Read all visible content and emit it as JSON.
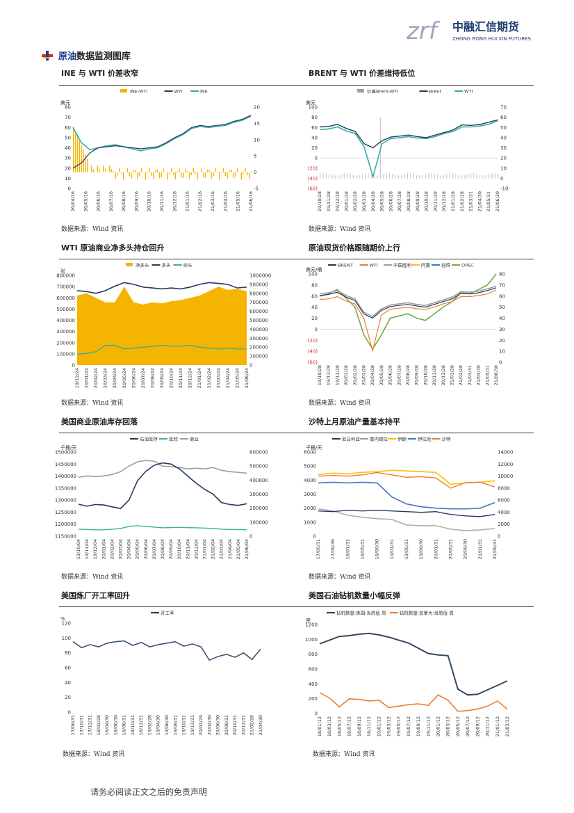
{
  "header": {
    "logo_mark": "zrf",
    "logo_cn": "中融汇信期货",
    "logo_en": "ZHONG RONG HUI XIN FUTURES"
  },
  "section": {
    "title_highlight": "原油",
    "title_rest": "数据监测图库"
  },
  "source_text": "数据来源：Wind 资讯",
  "footer": "请务必阅读正文之后的免责声明",
  "colors": {
    "navy": "#243a5e",
    "teal": "#3aaea0",
    "orange": "#f5b400",
    "grey": "#9e9e9e",
    "orange2": "#ed7d31",
    "blue": "#4472c4",
    "green": "#70ad47",
    "gold": "#ffc000"
  },
  "charts": [
    {
      "title": "INE 与 WTI 价差收窄",
      "chart_data": {
        "type": "line",
        "unit_left": "美元",
        "legend": [
          "INE-WTI",
          "WTI",
          "INE"
        ],
        "y_left_ticks": [
          "80",
          "70",
          "60",
          "50",
          "40",
          "30",
          "20",
          "10",
          "0"
        ],
        "y_right_ticks": [
          "20",
          "15",
          "10",
          "5",
          "0",
          "-5"
        ],
        "x_ticks": [
          "20/04/16",
          "20/05/16",
          "20/06/16",
          "20/07/16",
          "20/08/16",
          "20/09/16",
          "20/10/16",
          "20/11/16",
          "20/12/16",
          "21/01/16",
          "21/02/16",
          "21/03/16",
          "21/04/16",
          "21/05/16",
          "21/06/16"
        ],
        "wti": [
          20,
          25,
          35,
          40,
          41,
          42,
          41,
          40,
          39,
          40,
          41,
          45,
          50,
          54,
          60,
          62,
          61,
          62,
          63,
          66,
          68,
          72
        ],
        "ine": [
          60,
          45,
          38,
          40,
          42,
          43,
          41,
          39,
          37,
          39,
          40,
          44,
          49,
          53,
          59,
          61,
          60,
          61,
          62,
          65,
          67,
          71
        ]
      }
    },
    {
      "title": "BRENT 与 WTI 价差维持低位",
      "chart_data": {
        "type": "line",
        "unit_left": "美元",
        "legend": [
          "价差Brent-WTI",
          "Brent",
          "WTI"
        ],
        "y_left_ticks": [
          "100",
          "80",
          "60",
          "40",
          "20",
          "0",
          "(20)",
          "(40)",
          "(60)"
        ],
        "y_right_ticks": [
          "70",
          "60",
          "50",
          "40",
          "30",
          "20",
          "10",
          "0",
          "-10"
        ],
        "x_ticks": [
          "19/10/28",
          "19/11/28",
          "19/12/28",
          "20/01/28",
          "20/02/28",
          "20/03/28",
          "20/04/28",
          "20/05/28",
          "20/06/28",
          "20/07/28",
          "20/08/28",
          "20/09/28",
          "20/10/28",
          "20/11/28",
          "20/12/28",
          "21/01/28",
          "21/02/28",
          "21/03/31",
          "21/04/30",
          "21/05/31",
          "21/06/30"
        ],
        "brent": [
          61,
          62,
          66,
          58,
          52,
          28,
          20,
          34,
          41,
          43,
          45,
          42,
          40,
          45,
          50,
          55,
          65,
          64,
          66,
          70,
          75
        ],
        "wti": [
          56,
          57,
          61,
          53,
          48,
          22,
          -37,
          28,
          38,
          40,
          42,
          39,
          38,
          42,
          48,
          52,
          61,
          61,
          63,
          66,
          73
        ]
      }
    },
    {
      "title": "WTI 原油商业净多头持仓回升",
      "chart_data": {
        "type": "area",
        "unit_left": "张",
        "legend": [
          "净多头",
          "多头",
          "空头"
        ],
        "y_left_ticks": [
          "800000",
          "700000",
          "600000",
          "500000",
          "400000",
          "300000",
          "200000",
          "100000",
          "0"
        ],
        "y_right_ticks": [
          "1000000",
          "900000",
          "800000",
          "700000",
          "600000",
          "500000",
          "400000",
          "300000",
          "200000",
          "100000",
          "0"
        ],
        "x_ticks": [
          "19/12/24",
          "20/01/24",
          "20/02/24",
          "20/03/24",
          "20/04/24",
          "20/05/24",
          "20/06/24",
          "20/07/24",
          "20/08/24",
          "20/09/24",
          "20/10/24",
          "20/11/24",
          "20/12/24",
          "21/01/24",
          "21/02/24",
          "21/03/24",
          "21/04/24",
          "21/05/24",
          "21/06/24"
        ],
        "net_long": [
          620000,
          640000,
          600000,
          560000,
          560000,
          700000,
          560000,
          540000,
          560000,
          550000,
          570000,
          580000,
          600000,
          620000,
          660000,
          700000,
          670000,
          680000,
          660000
        ],
        "long": [
          830000,
          820000,
          800000,
          830000,
          880000,
          920000,
          900000,
          870000,
          860000,
          850000,
          860000,
          850000,
          870000,
          900000,
          920000,
          910000,
          900000,
          860000,
          870000
        ],
        "short": [
          120000,
          130000,
          150000,
          220000,
          220000,
          180000,
          190000,
          200000,
          210000,
          220000,
          210000,
          210000,
          220000,
          200000,
          190000,
          180000,
          190000,
          180000,
          180000
        ]
      }
    },
    {
      "title": "原油现货价格跟随期价上行",
      "chart_data": {
        "type": "line",
        "unit_left": "美元/桶",
        "legend": [
          "BRENT",
          "WTI",
          "中国胜利",
          "阿曼",
          "迪拜",
          "OPEC"
        ],
        "y_left_ticks": [
          "100",
          "80",
          "60",
          "40",
          "20",
          "0",
          "(20)",
          "(40)",
          "(60)"
        ],
        "y_right_ticks": [
          "80",
          "70",
          "60",
          "50",
          "40",
          "30",
          "20",
          "10",
          "0"
        ],
        "x_ticks": [
          "19/10/28",
          "19/11/28",
          "19/12/28",
          "20/01/28",
          "20/02/28",
          "20/03/28",
          "20/04/28",
          "20/05/28",
          "20/06/28",
          "20/07/28",
          "20/08/28",
          "20/09/28",
          "20/10/28",
          "20/11/28",
          "20/12/28",
          "21/01/28",
          "21/02/28",
          "21/03/31",
          "21/04/30",
          "21/05/31",
          "21/06/30"
        ],
        "brent": [
          61,
          63,
          67,
          58,
          52,
          28,
          20,
          34,
          41,
          43,
          45,
          42,
          40,
          45,
          50,
          55,
          65,
          64,
          66,
          70,
          75
        ],
        "wti": [
          56,
          57,
          61,
          53,
          48,
          22,
          -37,
          28,
          38,
          40,
          42,
          39,
          38,
          42,
          48,
          52,
          61,
          61,
          63,
          66,
          73
        ],
        "opec": [
          60,
          62,
          66,
          58,
          50,
          25,
          12,
          25,
          40,
          42,
          44,
          40,
          38,
          44,
          50,
          55,
          63,
          62,
          66,
          70,
          80
        ]
      }
    },
    {
      "title": "美国商业原油库存回落",
      "chart_data": {
        "type": "line",
        "unit_left": "千桶/天",
        "legend": [
          "石油库存",
          "库欣",
          "商业"
        ],
        "y_left_ticks": [
          "1500000",
          "1450000",
          "1400000",
          "1350000",
          "1300000",
          "1250000",
          "1200000",
          "1150000"
        ],
        "y_right_ticks": [
          "600000",
          "500000",
          "400000",
          "300000",
          "200000",
          "100000",
          "0"
        ],
        "x_ticks": [
          "19/10/04",
          "19/11/04",
          "19/12/04",
          "20/01/04",
          "20/02/04",
          "20/03/04",
          "20/04/04",
          "20/05/04",
          "20/06/04",
          "20/07/04",
          "20/08/04",
          "20/09/04",
          "20/10/04",
          "20/11/04",
          "20/12/04",
          "21/01/04",
          "21/02/04",
          "21/03/04",
          "21/04/04",
          "21/05/04",
          "21/06/04"
        ],
        "oil_stock": [
          1283000,
          1275000,
          1282000,
          1280000,
          1272000,
          1265000,
          1300000,
          1380000,
          1420000,
          1445000,
          1455000,
          1450000,
          1430000,
          1400000,
          1370000,
          1345000,
          1325000,
          1290000,
          1282000,
          1278000,
          1285000
        ],
        "cushing": [
          50000,
          48000,
          45000,
          46000,
          50000,
          55000,
          70000,
          75000,
          70000,
          65000,
          60000,
          62000,
          63000,
          61000,
          60000,
          58000,
          55000,
          50000,
          48000,
          47000,
          46000
        ],
        "commercial": [
          420000,
          430000,
          425000,
          430000,
          440000,
          460000,
          500000,
          530000,
          540000,
          535000,
          500000,
          495000,
          490000,
          480000,
          485000,
          480000,
          490000,
          470000,
          460000,
          455000,
          450000
        ]
      }
    },
    {
      "title": "沙特上月原油产量基本持平",
      "chart_data": {
        "type": "line",
        "unit_left": "千桶/天",
        "legend": [
          "尼日利亚",
          "委内瑞拉",
          "伊朗",
          "伊拉克",
          "沙特"
        ],
        "y_left_ticks": [
          "6000",
          "5000",
          "4000",
          "3000",
          "2000",
          "1000",
          "0"
        ],
        "y_right_ticks": [
          "14000",
          "12000",
          "10000",
          "8000",
          "6000",
          "4000",
          "2000",
          "0"
        ],
        "x_ticks": [
          "17/05/31",
          "17/09/30",
          "18/01/31",
          "18/05/31",
          "18/09/30",
          "19/01/31",
          "19/05/31",
          "19/09/30",
          "20/01/31",
          "20/05/31",
          "20/09/30",
          "21/01/31",
          "21/05/31"
        ],
        "nigeria": [
          1800,
          1750,
          1850,
          1800,
          1850,
          1800,
          1750,
          1700,
          1750,
          1550,
          1450,
          1400,
          1550
        ],
        "venezuela": [
          1950,
          1800,
          1500,
          1350,
          1250,
          1200,
          800,
          750,
          750,
          500,
          400,
          450,
          550
        ],
        "iran": [
          3800,
          3850,
          3800,
          3850,
          3800,
          2800,
          2300,
          2100,
          2000,
          1950,
          1950,
          2000,
          2400
        ],
        "iraq": [
          4400,
          4500,
          4450,
          4550,
          4600,
          4700,
          4650,
          4600,
          4550,
          3700,
          3800,
          3850,
          3950
        ],
        "saudi": [
          10000,
          10100,
          10000,
          10200,
          10600,
          10200,
          9800,
          9900,
          9700,
          8000,
          8900,
          9000,
          8200
        ]
      }
    },
    {
      "title": "美国炼厂开工率回升",
      "chart_data": {
        "type": "line",
        "unit_left": "%",
        "legend": [
          "开工率"
        ],
        "y_left_ticks": [
          "120",
          "100",
          "80",
          "60",
          "40",
          "20",
          "0"
        ],
        "x_ticks": [
          "17/08/31",
          "17/10/31",
          "17/12/31",
          "18/02/28",
          "18/04/30",
          "18/06/30",
          "18/08/31",
          "18/10/31",
          "18/12/31",
          "19/02/28",
          "19/04/30",
          "19/06/30",
          "19/08/31",
          "19/10/31",
          "19/12/31",
          "20/02/29",
          "20/04/30",
          "20/06/30",
          "20/08/31",
          "20/10/31",
          "20/12/31",
          "21/02/28",
          "21/04/30"
        ],
        "values": [
          95,
          87,
          91,
          88,
          93,
          95,
          96,
          90,
          94,
          88,
          91,
          93,
          95,
          89,
          92,
          88,
          70,
          75,
          78,
          74,
          80,
          71,
          85
        ]
      }
    },
    {
      "title": "美国石油钻机数量小幅反弹",
      "chart_data": {
        "type": "line",
        "unit_left": "座",
        "legend": [
          "钻机数量:美国:当周值 周",
          "钻机数量:加拿大:当周值 周"
        ],
        "y_left_ticks": [
          "1200",
          "1000",
          "800",
          "600",
          "400",
          "200",
          "0"
        ],
        "x_ticks": [
          "18/01/12",
          "18/03/12",
          "18/05/12",
          "18/07/12",
          "18/09/12",
          "18/11/12",
          "19/01/12",
          "19/03/12",
          "19/05/12",
          "19/07/12",
          "19/09/12",
          "19/11/12",
          "20/01/12",
          "20/03/12",
          "20/05/12",
          "20/07/12",
          "20/09/12",
          "20/11/12",
          "21/01/12",
          "21/03/12"
        ],
        "usa": [
          940,
          990,
          1040,
          1050,
          1070,
          1080,
          1060,
          1030,
          990,
          950,
          880,
          810,
          790,
          780,
          330,
          250,
          260,
          320,
          380,
          440
        ],
        "canada": [
          280,
          210,
          90,
          200,
          190,
          170,
          180,
          80,
          100,
          120,
          130,
          110,
          250,
          180,
          30,
          40,
          60,
          100,
          170,
          60
        ]
      }
    }
  ]
}
